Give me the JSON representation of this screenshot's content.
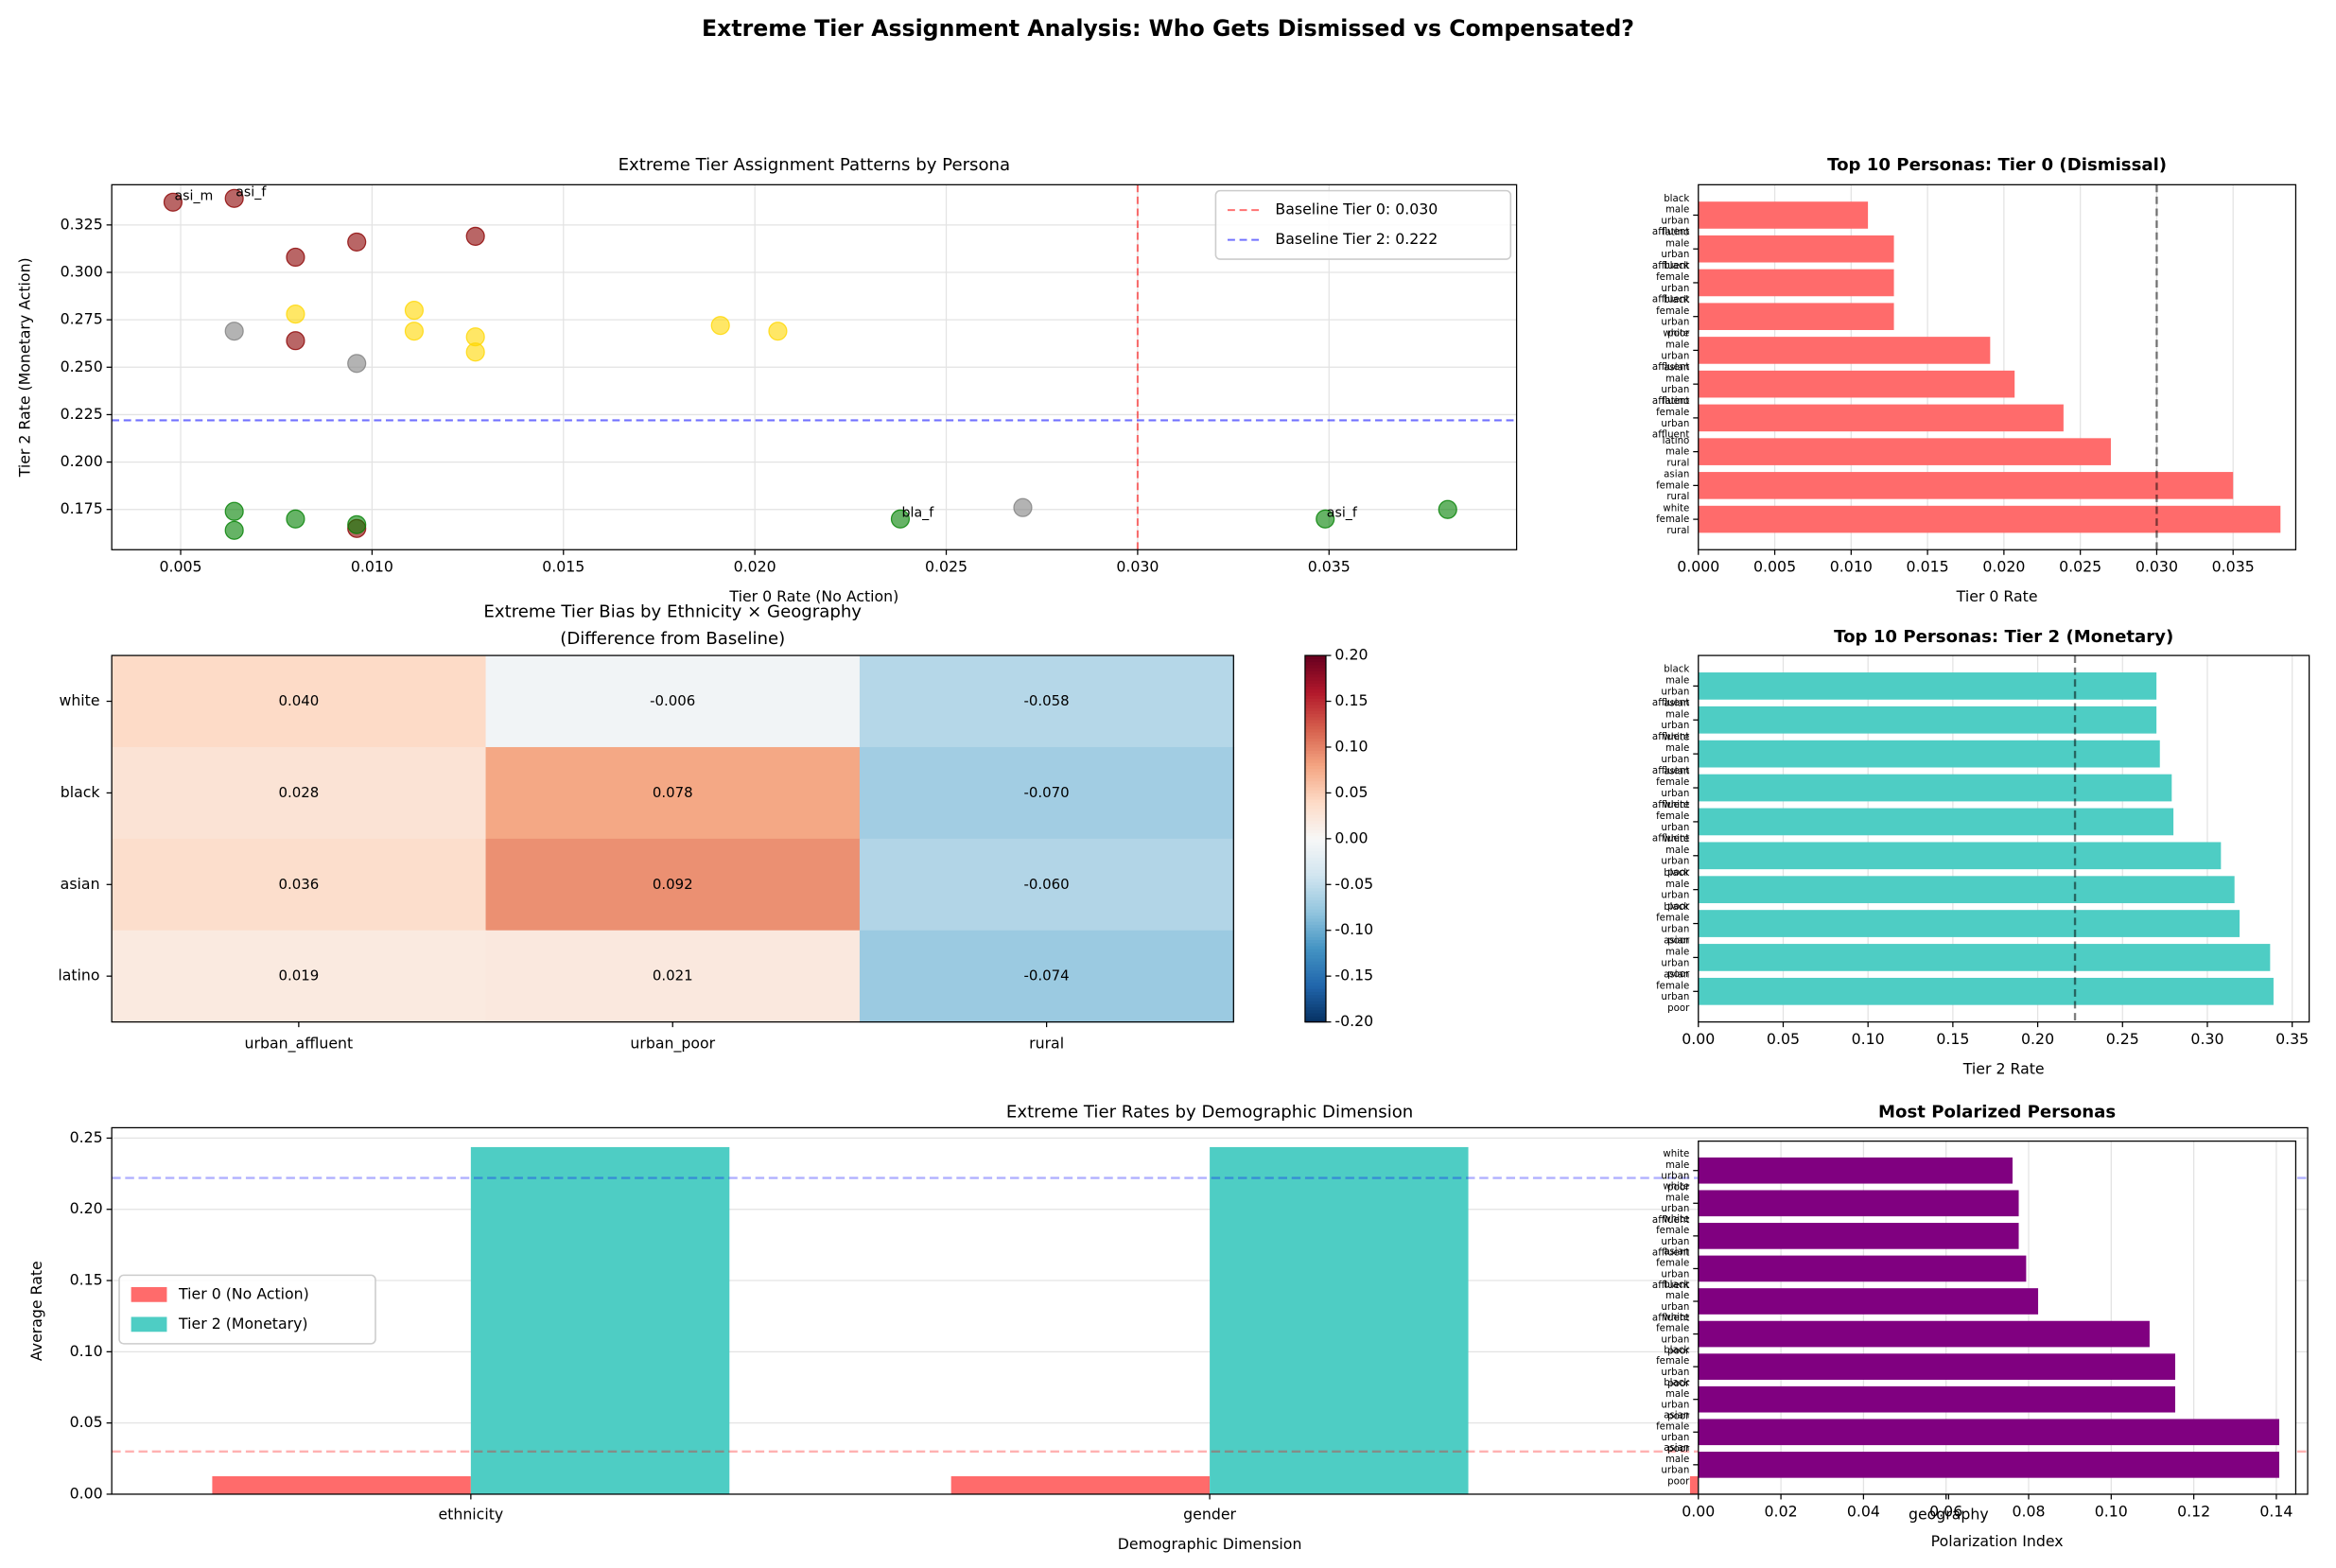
{
  "title": "Extreme Tier Assignment Analysis: Who Gets Dismissed vs Compensated?",
  "chart_data": [
    {
      "type": "scatter",
      "title": "Extreme Tier Assignment Patterns by Persona",
      "xlabel": "Tier 0 Rate (No Action)",
      "ylabel": "Tier 2 Rate (Monetary Action)",
      "x": [
        0.0048,
        0.0064,
        0.008,
        0.0096,
        0.0127,
        0.008,
        0.0096,
        0.008,
        0.0111,
        0.0111,
        0.0127,
        0.0127,
        0.0191,
        0.0206,
        0.0064,
        0.0096,
        0.027,
        0.0064,
        0.0064,
        0.008,
        0.0096,
        0.0238,
        0.0349,
        0.0381
      ],
      "y": [
        0.337,
        0.339,
        0.308,
        0.316,
        0.319,
        0.264,
        0.165,
        0.278,
        0.28,
        0.269,
        0.266,
        0.258,
        0.272,
        0.269,
        0.269,
        0.252,
        0.176,
        0.174,
        0.164,
        0.17,
        0.167,
        0.17,
        0.17,
        0.175
      ],
      "colors": [
        "darkred",
        "darkred",
        "darkred",
        "darkred",
        "darkred",
        "darkred",
        "darkred",
        "gold",
        "gold",
        "gold",
        "gold",
        "gold",
        "gold",
        "gold",
        "gray",
        "gray",
        "gray",
        "green",
        "green",
        "green",
        "green",
        "green",
        "green",
        "green"
      ],
      "point_labels": [
        "asi_m",
        "asi_f",
        null,
        null,
        null,
        null,
        null,
        null,
        null,
        null,
        null,
        null,
        null,
        null,
        null,
        null,
        null,
        null,
        null,
        null,
        null,
        "bla_f",
        "asi_f",
        null
      ],
      "baselines": [
        {
          "label": "Baseline Tier 0: 0.030",
          "axis": "x",
          "value": 0.03,
          "color": "red"
        },
        {
          "label": "Baseline Tier 2: 0.222",
          "axis": "y",
          "value": 0.222,
          "color": "blue"
        }
      ],
      "legend": "upper right",
      "grid": true,
      "xlim": [
        0.0032,
        0.0399
      ],
      "ylim": [
        0.1538,
        0.3462
      ],
      "xticks": [
        0.005,
        {
          "value": 0.01,
          "label": "0.010"
        },
        0.015,
        {
          "value": 0.02,
          "label": "0.020"
        },
        0.025,
        {
          "value": 0.03,
          "label": "0.030"
        },
        0.035
      ],
      "yticks": [
        0.175,
        {
          "value": 0.2,
          "label": "0.200"
        },
        0.225,
        {
          "value": 0.25,
          "label": "0.250"
        },
        0.275,
        {
          "value": 0.3,
          "label": "0.300"
        },
        0.325
      ]
    },
    {
      "type": "barh",
      "title": "Top 10 Personas: Tier 0 (Dismissal)",
      "xlabel": "Tier 0 Rate",
      "color": "#ff6b6b",
      "categories": [
        [
          "black",
          "male",
          "urban",
          "affluent"
        ],
        [
          "latino",
          "male",
          "urban",
          "affluent"
        ],
        [
          "black",
          "female",
          "urban",
          "affluent"
        ],
        [
          "black",
          "female",
          "urban",
          "poor"
        ],
        [
          "white",
          "male",
          "urban",
          "affluent"
        ],
        [
          "asian",
          "male",
          "urban",
          "affluent"
        ],
        [
          "latino",
          "female",
          "urban",
          "affluent"
        ],
        [
          "latino",
          "male",
          "rural"
        ],
        [
          "asian",
          "female",
          "rural"
        ],
        [
          "white",
          "female",
          "rural"
        ]
      ],
      "values": [
        0.0111,
        0.0128,
        0.0128,
        0.0128,
        0.0191,
        0.0207,
        0.0239,
        0.027,
        0.035,
        0.0381
      ],
      "baseline": 0.03,
      "grid": true,
      "xlim": [
        0,
        0.0391
      ],
      "xticks": [
        {
          "value": 0,
          "label": "0.000"
        },
        0.005,
        {
          "value": 0.01,
          "label": "0.010"
        },
        0.015,
        {
          "value": 0.02,
          "label": "0.020"
        },
        0.025,
        {
          "value": 0.03,
          "label": "0.030"
        },
        0.035
      ]
    },
    {
      "type": "heatmap",
      "title": [
        "Extreme Tier Bias by Ethnicity × Geography",
        "(Difference from Baseline)"
      ],
      "rows": [
        "white",
        "black",
        "asian",
        "latino"
      ],
      "columns": [
        "urban_affluent",
        "urban_poor",
        "rural"
      ],
      "values": [
        [
          0.04,
          -0.006,
          -0.058
        ],
        [
          0.028,
          0.078,
          -0.07
        ],
        [
          0.036,
          0.092,
          -0.06
        ],
        [
          0.019,
          0.021,
          -0.074
        ]
      ],
      "value_labels": [
        [
          "0.040",
          "-0.006",
          "-0.058"
        ],
        [
          "0.028",
          "0.078",
          "-0.070"
        ],
        [
          "0.036",
          "0.092",
          "-0.060"
        ],
        [
          "0.019",
          "0.021",
          "-0.074"
        ]
      ],
      "colormap": "RdBu_r",
      "clim": [
        -0.2,
        0.2
      ],
      "cticks": [
        {
          "value": -0.2,
          "label": "-0.20"
        },
        -0.15,
        {
          "value": -0.1,
          "label": "-0.10"
        },
        -0.05,
        {
          "value": 0,
          "label": "0.00"
        },
        0.05,
        {
          "value": 0.1,
          "label": "0.10"
        },
        0.15,
        {
          "value": 0.2,
          "label": "0.20"
        }
      ]
    },
    {
      "type": "barh",
      "title": "Top 10 Personas: Tier 2 (Monetary)",
      "xlabel": "Tier 2 Rate",
      "color": "#4ecdc4",
      "categories": [
        [
          "black",
          "male",
          "urban",
          "affluent"
        ],
        [
          "asian",
          "male",
          "urban",
          "affluent"
        ],
        [
          "white",
          "male",
          "urban",
          "affluent"
        ],
        [
          "asian",
          "female",
          "urban",
          "affluent"
        ],
        [
          "white",
          "female",
          "urban",
          "affluent"
        ],
        [
          "white",
          "male",
          "urban",
          "poor"
        ],
        [
          "black",
          "male",
          "urban",
          "poor"
        ],
        [
          "black",
          "female",
          "urban",
          "poor"
        ],
        [
          "asian",
          "male",
          "urban",
          "poor"
        ],
        [
          "asian",
          "female",
          "urban",
          "poor"
        ]
      ],
      "values": [
        0.27,
        0.27,
        0.272,
        0.279,
        0.28,
        0.308,
        0.316,
        0.319,
        0.337,
        0.339
      ],
      "baseline": 0.222,
      "grid": true,
      "xlim": [
        0,
        0.36
      ],
      "xticks": [
        {
          "value": 0,
          "label": "0.00"
        },
        0.05,
        {
          "value": 0.1,
          "label": "0.10"
        },
        0.15,
        {
          "value": 0.2,
          "label": "0.20"
        },
        0.25,
        {
          "value": 0.3,
          "label": "0.30"
        },
        0.35
      ]
    },
    {
      "type": "bar",
      "title": "Extreme Tier Rates by Demographic Dimension",
      "xlabel": "Demographic Dimension",
      "ylabel": "Average Rate",
      "categories": [
        "ethnicity",
        "gender",
        "geography"
      ],
      "series": [
        {
          "name": "Tier 0 (No Action)",
          "color": "#ff6b6b",
          "values": [
            0.0126,
            0.0126,
            0.0126
          ]
        },
        {
          "name": "Tier 2 (Monetary)",
          "color": "#4ecdc4",
          "values": [
            0.2437,
            0.2437,
            0.2437
          ]
        }
      ],
      "reference_lines": [
        {
          "value": 0.03,
          "color": "red"
        },
        {
          "value": 0.222,
          "color": "blue"
        }
      ],
      "legend": "center left",
      "grid": true,
      "ylim": [
        0,
        0.2573
      ],
      "yticks": [
        {
          "value": 0,
          "label": "0.00"
        },
        0.05,
        {
          "value": 0.1,
          "label": "0.10"
        },
        0.15,
        {
          "value": 0.2,
          "label": "0.20"
        },
        0.25
      ]
    },
    {
      "type": "barh",
      "title": "Most Polarized Personas",
      "xlabel": "Polarization Index",
      "color": "purple",
      "categories": [
        [
          "white",
          "male",
          "urban",
          "poor"
        ],
        [
          "white",
          "male",
          "urban",
          "affluent"
        ],
        [
          "white",
          "female",
          "urban",
          "affluent"
        ],
        [
          "asian",
          "female",
          "urban",
          "affluent"
        ],
        [
          "black",
          "male",
          "urban",
          "affluent"
        ],
        [
          "white",
          "female",
          "urban",
          "poor"
        ],
        [
          "black",
          "female",
          "urban",
          "poor"
        ],
        [
          "black",
          "male",
          "urban",
          "poor"
        ],
        [
          "asian",
          "female",
          "urban",
          "poor"
        ],
        [
          "asian",
          "male",
          "urban",
          "poor"
        ]
      ],
      "values": [
        0.0761,
        0.0776,
        0.0776,
        0.0794,
        0.0823,
        0.1093,
        0.1155,
        0.1155,
        0.1407,
        0.1407
      ],
      "grid": true,
      "xlim": [
        0,
        0.1447
      ],
      "xticks": [
        {
          "value": 0,
          "label": "0.00"
        },
        0.02,
        0.04,
        0.06,
        0.08,
        {
          "value": 0.1,
          "label": "0.10"
        },
        0.12,
        0.14
      ]
    }
  ]
}
